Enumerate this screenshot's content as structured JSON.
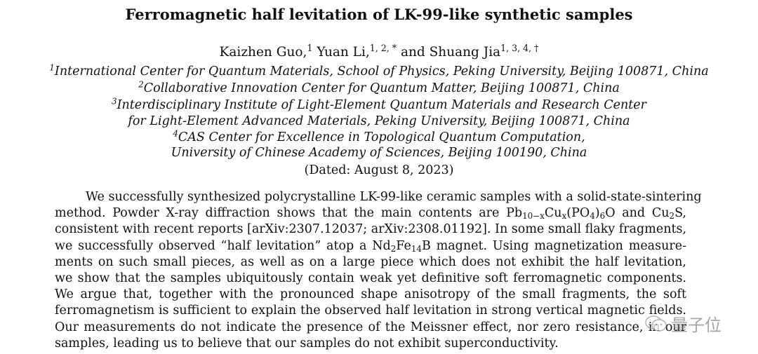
{
  "title": "Ferromagnetic half levitation of LK-99-like synthetic samples",
  "authors": [
    [
      "Kaizhen Guo,",
      ""
    ],
    [
      "1",
      "sup"
    ],
    [
      " Yuan Li,",
      ""
    ],
    [
      "1, 2, *",
      "sup"
    ],
    [
      " and Shuang Jia",
      ""
    ],
    [
      "1, 3, 4, †",
      "sup"
    ]
  ],
  "affiliations": [
    [
      [
        "1",
        "sup"
      ],
      [
        "International Center for Quantum Materials, School of Physics, Peking University, Beijing 100871, China",
        ""
      ]
    ],
    [
      [
        "2",
        "sup"
      ],
      [
        "Collaborative Innovation Center for Quantum Matter, Beijing 100871, China",
        ""
      ]
    ],
    [
      [
        "3",
        "sup"
      ],
      [
        "Interdisciplinary Institute of Light-Element Quantum Materials and Research Center",
        ""
      ]
    ],
    [
      [
        "for Light-Element Advanced Materials, Peking University, Beijing 100871, China",
        ""
      ]
    ],
    [
      [
        "4",
        "sup"
      ],
      [
        "CAS Center for Excellence in Topological Quantum Computation,",
        ""
      ]
    ],
    [
      [
        "University of Chinese Academy of Sciences, Beijing 100190, China",
        ""
      ]
    ]
  ],
  "dated": "(Dated: August 8, 2023)",
  "abstract": [
    [
      [
        "We successfully synthesized polycrystalline LK-99-like ceramic samples with a solid-state-sintering",
        ""
      ]
    ],
    [
      [
        "method. Powder X-ray diffraction shows that the main contents are Pb",
        ""
      ],
      [
        "10−x",
        "sub"
      ],
      [
        "Cu",
        ""
      ],
      [
        "x",
        "sub"
      ],
      [
        "(PO",
        ""
      ],
      [
        "4",
        "sub"
      ],
      [
        ")",
        ""
      ],
      [
        "6",
        "sub"
      ],
      [
        "O and Cu",
        ""
      ],
      [
        "2",
        "sub"
      ],
      [
        "S,",
        ""
      ]
    ],
    [
      [
        "consistent with recent reports [arXiv:2307.12037; arXiv:2308.01192]. In some small flaky fragments,",
        ""
      ]
    ],
    [
      [
        "we successfully observed “half levitation” atop a Nd",
        ""
      ],
      [
        "2",
        "sub"
      ],
      [
        "Fe",
        ""
      ],
      [
        "14",
        "sub"
      ],
      [
        "B magnet. Using magnetization measure-",
        ""
      ]
    ],
    [
      [
        "ments on such small pieces, as well as on a large piece which does not exhibit the half levitation,",
        ""
      ]
    ],
    [
      [
        "we show that the samples ubiquitously contain weak yet definitive soft ferromagnetic components.",
        ""
      ]
    ],
    [
      [
        "We argue that, together with the pronounced shape anisotropy of the small fragments, the soft",
        ""
      ]
    ],
    [
      [
        "ferromagnetism is sufficient to explain the observed half levitation in strong vertical magnetic fields.",
        ""
      ]
    ],
    [
      [
        "Our measurements do not indicate the presence of the Meissner effect, nor zero resistance, in our",
        ""
      ]
    ],
    [
      [
        "samples, leading us to believe that our samples do not exhibit superconductivity.",
        ""
      ]
    ]
  ],
  "watermark": {
    "text": "量子位",
    "icon": "wechat-icon",
    "color": "#888888"
  }
}
